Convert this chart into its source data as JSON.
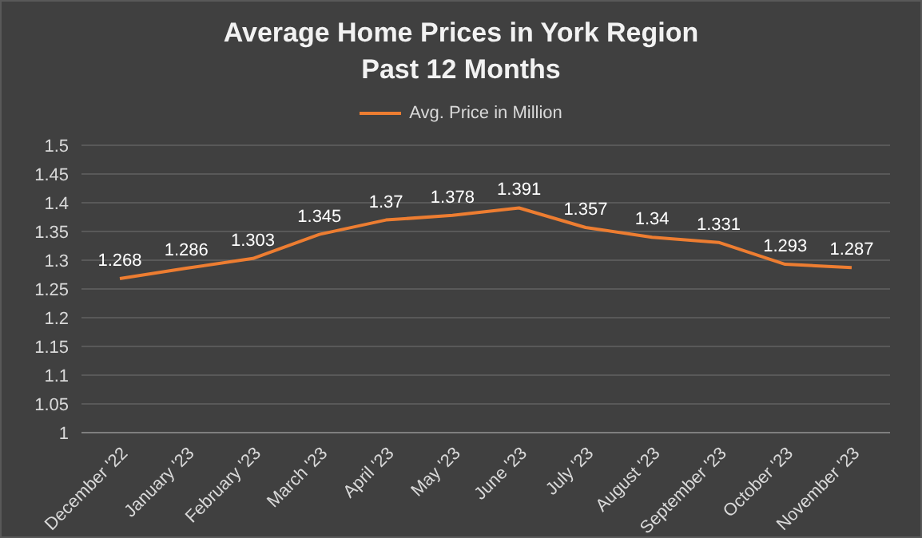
{
  "chart_data": {
    "type": "line",
    "title": "Average Home Prices in York Region",
    "subtitle": "Past 12 Months",
    "categories": [
      "December '22",
      "January '23",
      "February '23",
      "March '23",
      "April '23",
      "May '23",
      "June '23",
      "July '23",
      "August '23",
      "September '23",
      "October '23",
      "November '23"
    ],
    "series": [
      {
        "name": "Avg. Price in Million",
        "color": "#ed7d31",
        "values": [
          1.268,
          1.286,
          1.303,
          1.345,
          1.37,
          1.378,
          1.391,
          1.357,
          1.34,
          1.331,
          1.293,
          1.287
        ]
      }
    ],
    "ylim": [
      1,
      1.5
    ],
    "yticks": [
      1,
      1.05,
      1.1,
      1.15,
      1.2,
      1.25,
      1.3,
      1.35,
      1.4,
      1.45,
      1.5
    ],
    "grid": "y",
    "legend": "top",
    "data_labels": true,
    "marker": "none",
    "line_style": "solid"
  }
}
